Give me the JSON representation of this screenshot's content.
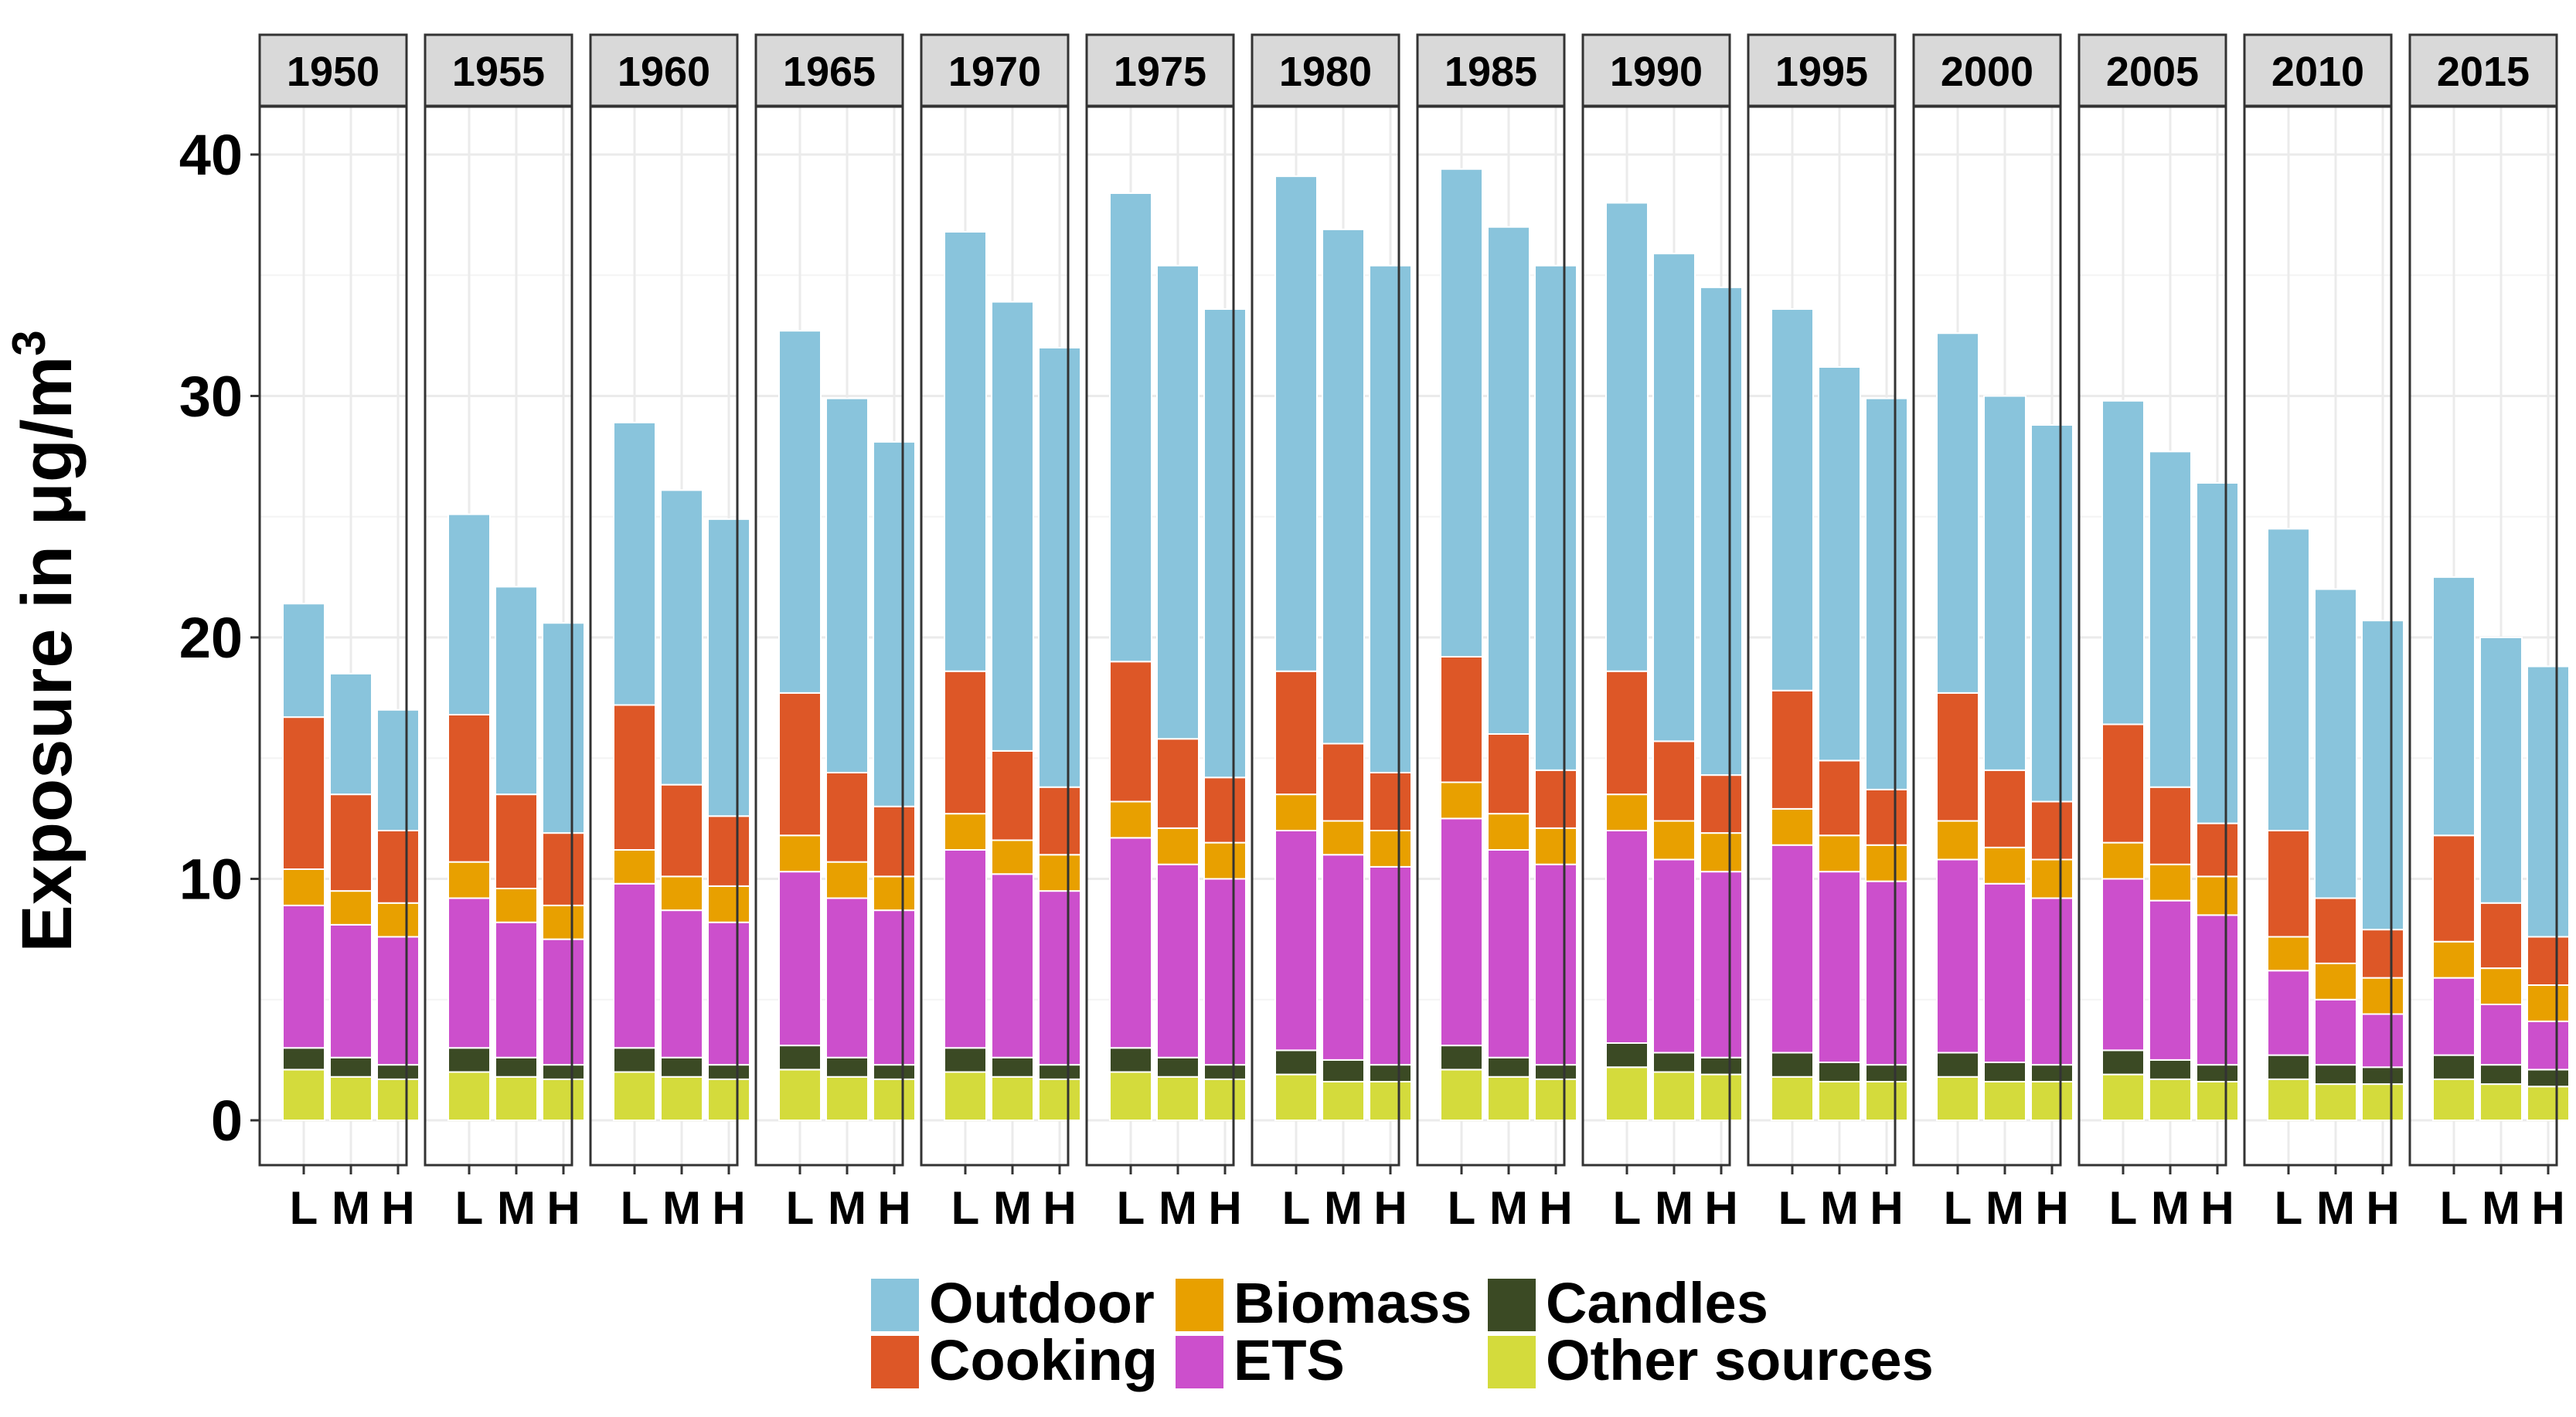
{
  "chart_data": {
    "type": "bar",
    "stacked": true,
    "facet_by": "year",
    "facets": [
      "1950",
      "1955",
      "1960",
      "1965",
      "1970",
      "1975",
      "1980",
      "1985",
      "1990",
      "1995",
      "2000",
      "2005",
      "2010",
      "2015"
    ],
    "categories": [
      "L",
      "M",
      "H"
    ],
    "ylabel": "Exposure in μg/m",
    "ylabel_superscript": "3",
    "ylim": [
      0,
      42
    ],
    "yticks": [
      "0",
      "10",
      "20",
      "30",
      "40"
    ],
    "ytick_values": [
      0,
      10,
      20,
      30,
      40
    ],
    "legend_position": "bottom",
    "series": [
      {
        "name": "Other sources",
        "color": "#d4db3c"
      },
      {
        "name": "Candles",
        "color": "#3b4a24"
      },
      {
        "name": "ETS",
        "color": "#cc4fcc"
      },
      {
        "name": "Biomass",
        "color": "#e8a000"
      },
      {
        "name": "Cooking",
        "color": "#dd5727"
      },
      {
        "name": "Outdoor",
        "color": "#89c4dc"
      }
    ],
    "legend_order": [
      "Outdoor",
      "Cooking",
      "Biomass",
      "ETS",
      "Candles",
      "Other sources"
    ],
    "values": {
      "1950": {
        "L": [
          2.1,
          0.9,
          5.9,
          1.5,
          6.3,
          4.7
        ],
        "M": [
          1.8,
          0.8,
          5.5,
          1.4,
          4.0,
          5.0
        ],
        "H": [
          1.7,
          0.6,
          5.3,
          1.4,
          3.0,
          5.0
        ]
      },
      "1955": {
        "L": [
          2.0,
          1.0,
          6.2,
          1.5,
          6.1,
          8.3
        ],
        "M": [
          1.8,
          0.8,
          5.6,
          1.4,
          3.9,
          8.6
        ],
        "H": [
          1.7,
          0.6,
          5.2,
          1.4,
          3.0,
          8.7
        ]
      },
      "1960": {
        "L": [
          2.0,
          1.0,
          6.8,
          1.4,
          6.0,
          11.7
        ],
        "M": [
          1.8,
          0.8,
          6.1,
          1.4,
          3.8,
          12.2
        ],
        "H": [
          1.7,
          0.6,
          5.9,
          1.5,
          2.9,
          12.3
        ]
      },
      "1965": {
        "L": [
          2.1,
          1.0,
          7.2,
          1.5,
          5.9,
          15.0
        ],
        "M": [
          1.8,
          0.8,
          6.6,
          1.5,
          3.7,
          15.5
        ],
        "H": [
          1.7,
          0.6,
          6.4,
          1.4,
          2.9,
          15.1
        ]
      },
      "1970": {
        "L": [
          2.0,
          1.0,
          8.2,
          1.5,
          5.9,
          18.2
        ],
        "M": [
          1.8,
          0.8,
          7.6,
          1.4,
          3.7,
          18.6
        ],
        "H": [
          1.7,
          0.6,
          7.2,
          1.5,
          2.8,
          18.2
        ]
      },
      "1975": {
        "L": [
          2.0,
          1.0,
          8.7,
          1.5,
          5.8,
          19.4
        ],
        "M": [
          1.8,
          0.8,
          8.0,
          1.5,
          3.7,
          19.6
        ],
        "H": [
          1.7,
          0.6,
          7.7,
          1.5,
          2.7,
          19.4
        ]
      },
      "1980": {
        "L": [
          1.9,
          1.0,
          9.1,
          1.5,
          5.1,
          20.5
        ],
        "M": [
          1.6,
          0.9,
          8.5,
          1.4,
          3.2,
          21.3
        ],
        "H": [
          1.6,
          0.7,
          8.2,
          1.5,
          2.4,
          21.0
        ]
      },
      "1985": {
        "L": [
          2.1,
          1.0,
          9.4,
          1.5,
          5.2,
          20.2
        ],
        "M": [
          1.8,
          0.8,
          8.6,
          1.5,
          3.3,
          21.0
        ],
        "H": [
          1.7,
          0.6,
          8.3,
          1.5,
          2.4,
          20.9
        ]
      },
      "1990": {
        "L": [
          2.2,
          1.0,
          8.8,
          1.5,
          5.1,
          19.4
        ],
        "M": [
          2.0,
          0.8,
          8.0,
          1.6,
          3.3,
          20.2
        ],
        "H": [
          1.9,
          0.7,
          7.7,
          1.6,
          2.4,
          20.2
        ]
      },
      "1995": {
        "L": [
          1.8,
          1.0,
          8.6,
          1.5,
          4.9,
          15.8
        ],
        "M": [
          1.6,
          0.8,
          7.9,
          1.5,
          3.1,
          16.3
        ],
        "H": [
          1.6,
          0.7,
          7.6,
          1.5,
          2.3,
          16.2
        ]
      },
      "2000": {
        "L": [
          1.8,
          1.0,
          8.0,
          1.6,
          5.3,
          14.9
        ],
        "M": [
          1.6,
          0.8,
          7.4,
          1.5,
          3.2,
          15.5
        ],
        "H": [
          1.6,
          0.7,
          6.9,
          1.6,
          2.4,
          15.6
        ]
      },
      "2005": {
        "L": [
          1.9,
          1.0,
          7.1,
          1.5,
          4.9,
          13.4
        ],
        "M": [
          1.7,
          0.8,
          6.6,
          1.5,
          3.2,
          13.9
        ],
        "H": [
          1.6,
          0.7,
          6.2,
          1.6,
          2.2,
          14.1
        ]
      },
      "2010": {
        "L": [
          1.7,
          1.0,
          3.5,
          1.4,
          4.4,
          12.5
        ],
        "M": [
          1.5,
          0.8,
          2.7,
          1.5,
          2.7,
          12.8
        ],
        "H": [
          1.5,
          0.7,
          2.2,
          1.5,
          2.0,
          12.8
        ]
      },
      "2015": {
        "L": [
          1.7,
          1.0,
          3.2,
          1.5,
          4.4,
          10.7
        ],
        "M": [
          1.5,
          0.8,
          2.5,
          1.5,
          2.7,
          11.0
        ],
        "H": [
          1.4,
          0.7,
          2.0,
          1.5,
          2.0,
          11.2
        ]
      }
    }
  }
}
